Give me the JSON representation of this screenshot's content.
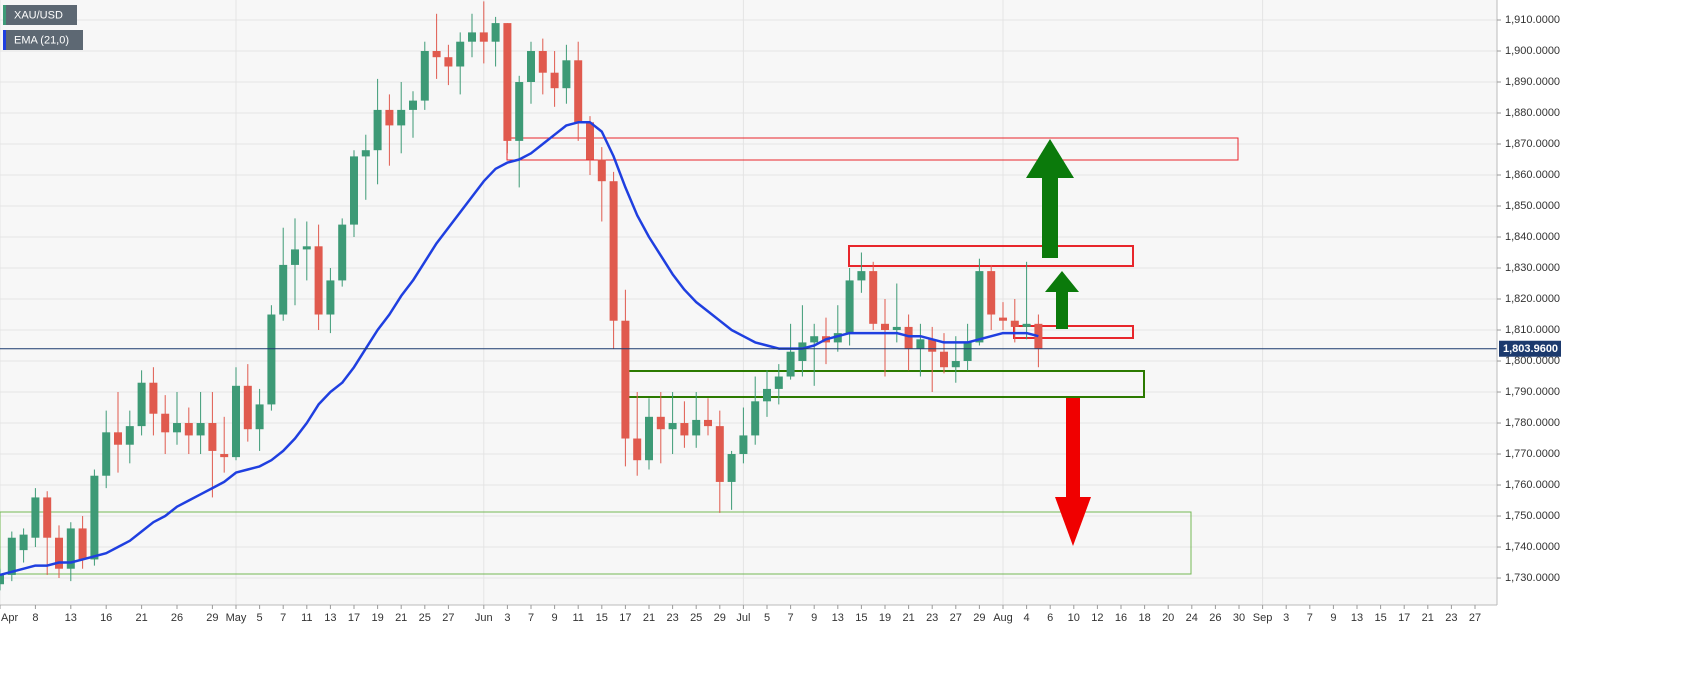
{
  "chart_data": {
    "type": "candlestick",
    "categories": [
      "Apr",
      null,
      null,
      "8",
      null,
      null,
      "13",
      null,
      null,
      "16",
      null,
      null,
      "21",
      null,
      null,
      "26",
      null,
      null,
      "29",
      null,
      "May",
      null,
      "5",
      null,
      "7",
      null,
      "11",
      null,
      "13",
      null,
      "17",
      null,
      "19",
      null,
      "21",
      null,
      "25",
      null,
      "27",
      null,
      null,
      "Jun",
      null,
      "3",
      null,
      "7",
      null,
      "9",
      null,
      "11",
      null,
      "15",
      null,
      "17",
      null,
      "21",
      null,
      "23",
      null,
      "25",
      null,
      "29",
      null,
      "Jul",
      null,
      "5",
      null,
      "7",
      null,
      "9",
      null,
      "13",
      null,
      "15",
      null,
      "19",
      null,
      "21",
      null,
      "23",
      null,
      "27",
      null,
      "29",
      null,
      "Aug",
      null,
      "4",
      null,
      "6",
      null,
      "10",
      null,
      "12",
      null,
      "16",
      null,
      "18",
      null,
      "20",
      null,
      "24",
      null,
      "26",
      null,
      "30",
      null,
      "Sep",
      null,
      "3",
      null,
      "7",
      null,
      "9",
      null,
      "13",
      null,
      "15",
      null,
      "17",
      null,
      "21",
      null,
      "23",
      null,
      "27",
      null
    ],
    "series": [
      {
        "name": "XAU/USD",
        "up_color": "#3d9a76",
        "down_color": "#e05a4e",
        "open": [
          1728,
          1731,
          1739,
          1743,
          1756,
          1743,
          1733,
          1746,
          1736,
          1763,
          1777,
          1773,
          1779,
          1793,
          1783,
          1777,
          1780,
          1776,
          1780,
          1770,
          1769,
          1792,
          1778,
          1786,
          1815,
          1831,
          1836,
          1837,
          1815,
          1826,
          1844,
          1866,
          1868,
          1881,
          1876,
          1881,
          1884,
          1900,
          1898,
          1895,
          1903,
          1906,
          1903,
          1909,
          1871,
          1890,
          1900,
          1893,
          1888,
          1897,
          1877,
          1865,
          1858,
          1813,
          1775,
          1768,
          1782,
          1778,
          1780,
          1776,
          1781,
          1779,
          1761,
          1770,
          1776,
          1787,
          1791,
          1795,
          1800,
          1806,
          1808,
          1806,
          1809,
          1826,
          1829,
          1812,
          1810,
          1811,
          1804,
          1807,
          1803,
          1798,
          1800,
          1806,
          1829,
          1814,
          1813,
          1811,
          1812,
          null,
          null,
          null,
          null,
          null,
          null,
          null,
          null,
          null,
          null,
          null,
          null,
          null,
          null,
          null,
          null,
          null,
          null,
          null,
          null,
          null,
          null,
          null,
          null,
          null,
          null,
          null,
          null,
          null,
          null,
          null,
          null,
          null,
          null,
          null,
          null,
          null,
          null
        ],
        "high": [
          1733,
          1745,
          1746,
          1759,
          1758,
          1747,
          1748,
          1750,
          1765,
          1784,
          1790,
          1784,
          1797,
          1798,
          1789,
          1790,
          1785,
          1790,
          1790,
          1782,
          1798,
          1799,
          1791,
          1818,
          1843,
          1846,
          1845,
          1844,
          1830,
          1846,
          1868,
          1873,
          1891,
          1886,
          1890,
          1887,
          1903,
          1912,
          1902,
          1906,
          1912,
          1916,
          1911,
          1909,
          1892,
          1903,
          1904,
          1900,
          1902,
          1903,
          1879,
          1869,
          1861,
          1823,
          1790,
          1788,
          1790,
          1790,
          1787,
          1790,
          1788,
          1784,
          1771,
          1785,
          1795,
          1797,
          1799,
          1812,
          1818,
          1812,
          1814,
          1818,
          1830,
          1835,
          1832,
          1820,
          1825,
          1815,
          1812,
          1811,
          1809,
          1808,
          1812,
          1833,
          1831,
          1819,
          1820,
          1832,
          1815,
          null,
          null,
          null,
          null,
          null,
          null,
          null,
          null,
          null,
          null,
          null,
          null,
          null,
          null,
          null,
          null,
          null,
          null,
          null,
          null,
          null,
          null,
          null,
          null,
          null,
          null,
          null,
          null,
          null,
          null,
          null,
          null,
          null,
          null,
          null,
          null,
          null,
          null
        ],
        "low": [
          1726,
          1729,
          1735,
          1740,
          1731,
          1730,
          1729,
          1733,
          1734,
          1759,
          1764,
          1767,
          1776,
          1776,
          1770,
          1773,
          1770,
          1770,
          1756,
          1764,
          1768,
          1774,
          1771,
          1784,
          1813,
          1818,
          1826,
          1810,
          1809,
          1824,
          1840,
          1852,
          1857,
          1863,
          1867,
          1872,
          1881,
          1891,
          1889,
          1886,
          1898,
          1896,
          1895,
          1867,
          1856,
          1883,
          1886,
          1882,
          1883,
          1871,
          1860,
          1845,
          1804,
          1766,
          1763,
          1765,
          1767,
          1770,
          1772,
          1772,
          1776,
          1751,
          1752,
          1767,
          1773,
          1782,
          1786,
          1794,
          1795,
          1792,
          1799,
          1803,
          1805,
          1822,
          1810,
          1795,
          1806,
          1797,
          1795,
          1790,
          1796,
          1793,
          1797,
          1805,
          1810,
          1810,
          1806,
          1807,
          1798,
          null,
          null,
          null,
          null,
          null,
          null,
          null,
          null,
          null,
          null,
          null,
          null,
          null,
          null,
          null,
          null,
          null,
          null,
          null,
          null,
          null,
          null,
          null,
          null,
          null,
          null,
          null,
          null,
          null,
          null,
          null,
          null,
          null,
          null,
          null,
          null,
          null,
          null
        ],
        "close": [
          1731,
          1743,
          1744,
          1756,
          1743,
          1733,
          1746,
          1736,
          1763,
          1777,
          1773,
          1779,
          1793,
          1783,
          1777,
          1780,
          1776,
          1780,
          1771,
          1769,
          1792,
          1778,
          1786,
          1815,
          1831,
          1836,
          1837,
          1815,
          1826,
          1844,
          1866,
          1868,
          1881,
          1876,
          1881,
          1884,
          1900,
          1898,
          1895,
          1903,
          1906,
          1903,
          1909,
          1871,
          1890,
          1900,
          1893,
          1888,
          1897,
          1877,
          1865,
          1858,
          1813,
          1775,
          1768,
          1782,
          1778,
          1780,
          1776,
          1781,
          1779,
          1761,
          1770,
          1776,
          1787,
          1791,
          1795,
          1803,
          1806,
          1808,
          1806,
          1809,
          1826,
          1829,
          1812,
          1810,
          1811,
          1804,
          1807,
          1803,
          1798,
          1800,
          1806,
          1829,
          1815,
          1813,
          1811,
          1812,
          1804,
          null,
          null,
          null,
          null,
          null,
          null,
          null,
          null,
          null,
          null,
          null,
          null,
          null,
          null,
          null,
          null,
          null,
          null,
          null,
          null,
          null,
          null,
          null,
          null,
          null,
          null,
          null,
          null,
          null,
          null,
          null,
          null,
          null,
          null,
          null,
          null,
          null,
          null
        ]
      },
      {
        "name": "EMA (21,0)",
        "type": "line",
        "color": "#1f3fe0",
        "values": [
          1731,
          1732,
          1733,
          1734,
          1734,
          1735,
          1735,
          1736,
          1737,
          1738,
          1740,
          1742,
          1745,
          1748,
          1750,
          1753,
          1755,
          1757,
          1759,
          1761,
          1764,
          1765,
          1766,
          1768,
          1771,
          1775,
          1780,
          1786,
          1790,
          1793,
          1798,
          1804,
          1810,
          1815,
          1821,
          1826,
          1832,
          1838,
          1843,
          1848,
          1853,
          1858,
          1862,
          1864,
          1865,
          1867,
          1870,
          1873,
          1876,
          1877,
          1877,
          1874,
          1866,
          1856,
          1847,
          1840,
          1834,
          1828,
          1823,
          1819,
          1816,
          1813,
          1810,
          1808,
          1806,
          1805,
          1804,
          1804,
          1804,
          1805,
          1807,
          1808,
          1809,
          1809,
          1809,
          1809,
          1809,
          1808,
          1808,
          1807,
          1806,
          1806,
          1806,
          1807,
          1808,
          1809,
          1809,
          1809,
          1808,
          null,
          null,
          null,
          null,
          null,
          null,
          null,
          null,
          null,
          null,
          null,
          null,
          null,
          null,
          null,
          null,
          null,
          null,
          null,
          null,
          null,
          null,
          null,
          null,
          null,
          null,
          null,
          null,
          null,
          null,
          null,
          null,
          null,
          null,
          null,
          null,
          null,
          null
        ]
      }
    ],
    "last_price": {
      "value": 1803.96,
      "label": "1,803.9600"
    },
    "ylim": [
      1721.3,
      1916.45
    ],
    "yticks": [
      {
        "value": 1730,
        "label": "1,730.0000"
      },
      {
        "value": 1740,
        "label": "1,740.0000"
      },
      {
        "value": 1750,
        "label": "1,750.0000"
      },
      {
        "value": 1760,
        "label": "1,760.0000"
      },
      {
        "value": 1770,
        "label": "1,770.0000"
      },
      {
        "value": 1780,
        "label": "1,780.0000"
      },
      {
        "value": 1790,
        "label": "1,790.0000"
      },
      {
        "value": 1800,
        "label": "1,800.0000"
      },
      {
        "value": 1810,
        "label": "1,810.0000"
      },
      {
        "value": 1820,
        "label": "1,820.0000"
      },
      {
        "value": 1830,
        "label": "1,830.0000"
      },
      {
        "value": 1840,
        "label": "1,840.0000"
      },
      {
        "value": 1850,
        "label": "1,850.0000"
      },
      {
        "value": 1860,
        "label": "1,860.0000"
      },
      {
        "value": 1870,
        "label": "1,870.0000"
      },
      {
        "value": 1880,
        "label": "1,880.0000"
      },
      {
        "value": 1890,
        "label": "1,890.0000"
      },
      {
        "value": 1900,
        "label": "1,900.0000"
      },
      {
        "value": 1910,
        "label": "1,910.0000"
      }
    ],
    "grid": true
  }
}
